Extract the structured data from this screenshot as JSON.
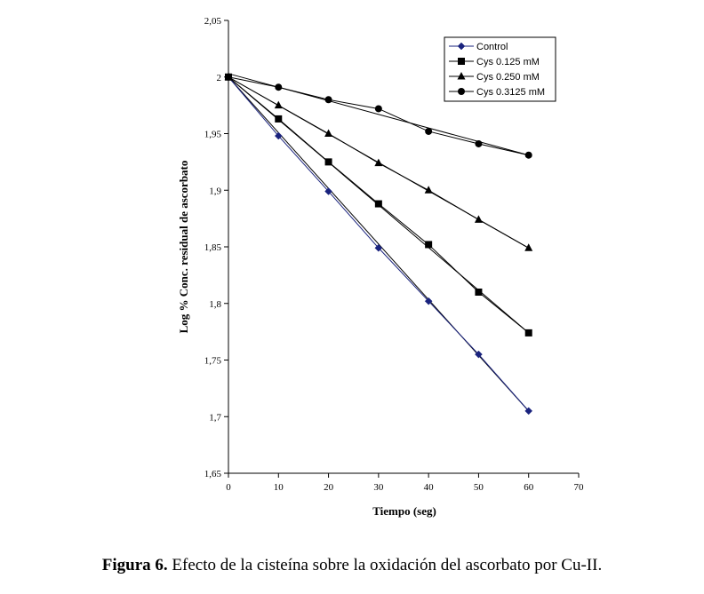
{
  "chart_data": {
    "type": "line",
    "xlabel": "Tiempo (seg)",
    "ylabel": "Log % Conc. residual de ascorbato",
    "xlim": [
      0,
      70
    ],
    "ylim": [
      1.65,
      2.05
    ],
    "xticks": [
      0,
      10,
      20,
      30,
      40,
      50,
      60,
      70
    ],
    "xtick_labels": [
      "0",
      "10",
      "20",
      "30",
      "40",
      "50",
      "60",
      "70"
    ],
    "yticks": [
      1.65,
      1.7,
      1.75,
      1.8,
      1.85,
      1.9,
      1.95,
      2,
      2.05
    ],
    "ytick_labels": [
      "1,65",
      "1,7",
      "1,75",
      "1,8",
      "1,85",
      "1,9",
      "1,95",
      "2",
      "2,05"
    ],
    "grid": false,
    "legend_position": "top-right",
    "series": [
      {
        "name": "Control",
        "marker": "diamond",
        "color": "#1a237e",
        "x": [
          0,
          10,
          20,
          30,
          40,
          50,
          60
        ],
        "y": [
          2.0,
          1.948,
          1.899,
          1.849,
          1.802,
          1.755,
          1.705
        ],
        "trend": [
          2.0,
          1.705
        ]
      },
      {
        "name": "Cys 0.125 mM",
        "marker": "square",
        "color": "#000000",
        "x": [
          0,
          10,
          20,
          30,
          40,
          50,
          60
        ],
        "y": [
          2.0,
          1.963,
          1.925,
          1.888,
          1.852,
          1.81,
          1.774
        ],
        "trend": [
          2.0,
          1.774
        ]
      },
      {
        "name": "Cys 0.250 mM",
        "marker": "triangle",
        "color": "#000000",
        "x": [
          0,
          10,
          20,
          30,
          40,
          50,
          60
        ],
        "y": [
          2.0,
          1.975,
          1.95,
          1.924,
          1.9,
          1.874,
          1.849
        ],
        "trend": [
          2.0,
          1.849
        ]
      },
      {
        "name": "Cys 0.3125 mM",
        "marker": "circle",
        "color": "#000000",
        "x": [
          0,
          10,
          20,
          30,
          40,
          50,
          60
        ],
        "y": [
          2.0,
          1.991,
          1.98,
          1.972,
          1.952,
          1.941,
          1.931
        ],
        "trend": [
          2.003,
          1.931
        ]
      }
    ]
  },
  "caption": {
    "label": "Figura 6.",
    "text": " Efecto de la cisteína sobre la oxidación del ascorbato por Cu-II."
  }
}
